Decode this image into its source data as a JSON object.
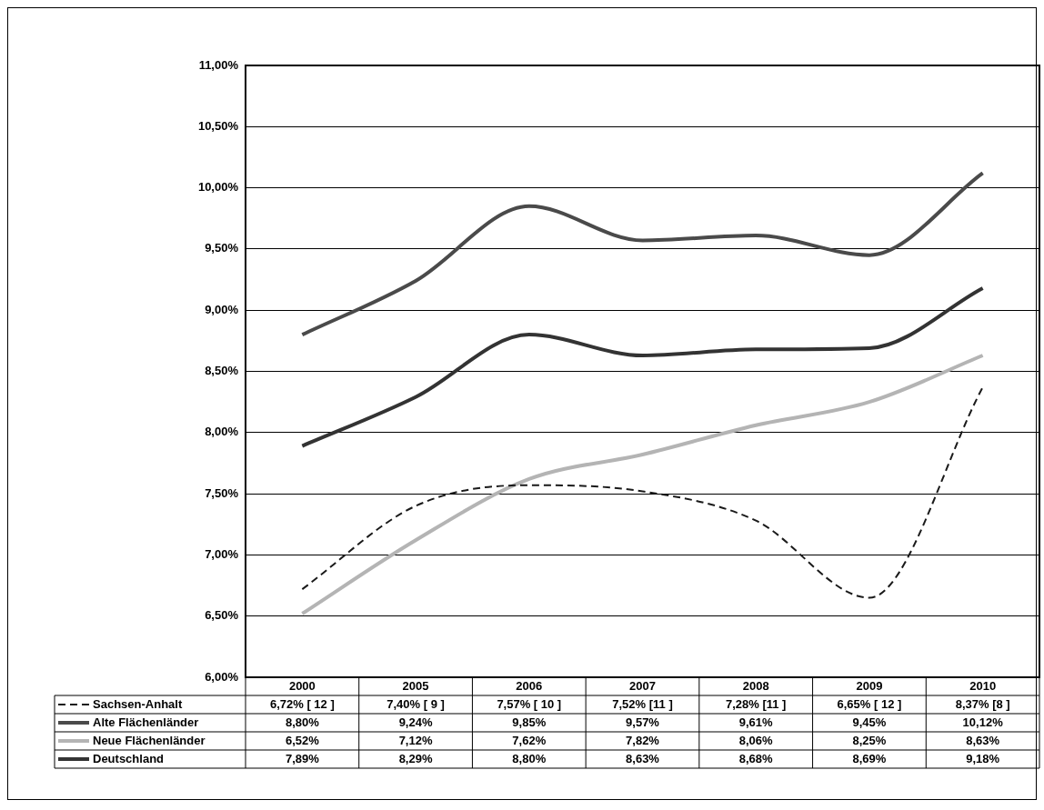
{
  "chart_data": {
    "type": "line",
    "categories": [
      "2000",
      "2005",
      "2006",
      "2007",
      "2008",
      "2009",
      "2010"
    ],
    "series": [
      {
        "name": "Sachsen-Anhalt",
        "color": "#1a1a1a",
        "line_style": "dashed",
        "values": [
          6.72,
          7.4,
          7.57,
          7.52,
          7.28,
          6.65,
          8.37
        ],
        "value_labels": [
          "6,72% [ 12 ]",
          "7,40% [ 9 ]",
          "7,57% [ 10 ]",
          "7,52% [11 ]",
          "7,28% [11 ]",
          "6,65% [ 12 ]",
          "8,37% [8 ]"
        ]
      },
      {
        "name": "Alte Flächenländer",
        "color": "#4a4a4a",
        "line_style": "solid",
        "values": [
          8.8,
          9.24,
          9.85,
          9.57,
          9.61,
          9.45,
          10.12
        ],
        "value_labels": [
          "8,80%",
          "9,24%",
          "9,85%",
          "9,57%",
          "9,61%",
          "9,45%",
          "10,12%"
        ]
      },
      {
        "name": "Neue Flächenländer",
        "color": "#b4b4b4",
        "line_style": "solid",
        "values": [
          6.52,
          7.12,
          7.62,
          7.82,
          8.06,
          8.25,
          8.63
        ],
        "value_labels": [
          "6,52%",
          "7,12%",
          "7,62%",
          "7,82%",
          "8,06%",
          "8,25%",
          "8,63%"
        ]
      },
      {
        "name": "Deutschland",
        "color": "#333333",
        "line_style": "solid",
        "values": [
          7.89,
          8.29,
          8.8,
          8.63,
          8.68,
          8.69,
          9.18
        ],
        "value_labels": [
          "7,89%",
          "8,29%",
          "8,80%",
          "8,63%",
          "8,68%",
          "8,69%",
          "9,18%"
        ]
      }
    ],
    "ylim": [
      6,
      11
    ],
    "yticks": [
      {
        "value": 6,
        "label": "6,00%"
      },
      {
        "value": 6.5,
        "label": "6,50%"
      },
      {
        "value": 7,
        "label": "7,00%"
      },
      {
        "value": 7.5,
        "label": "7,50%"
      },
      {
        "value": 8,
        "label": "8,00%"
      },
      {
        "value": 8.5,
        "label": "8,50%"
      },
      {
        "value": 9,
        "label": "9,00%"
      },
      {
        "value": 9.5,
        "label": "9,50%"
      },
      {
        "value": 10,
        "label": "10,00%"
      },
      {
        "value": 10.5,
        "label": "10,50%"
      },
      {
        "value": 11,
        "label": "11,00%"
      }
    ],
    "grid": "y",
    "legend": "bottom left",
    "marker": "none"
  }
}
